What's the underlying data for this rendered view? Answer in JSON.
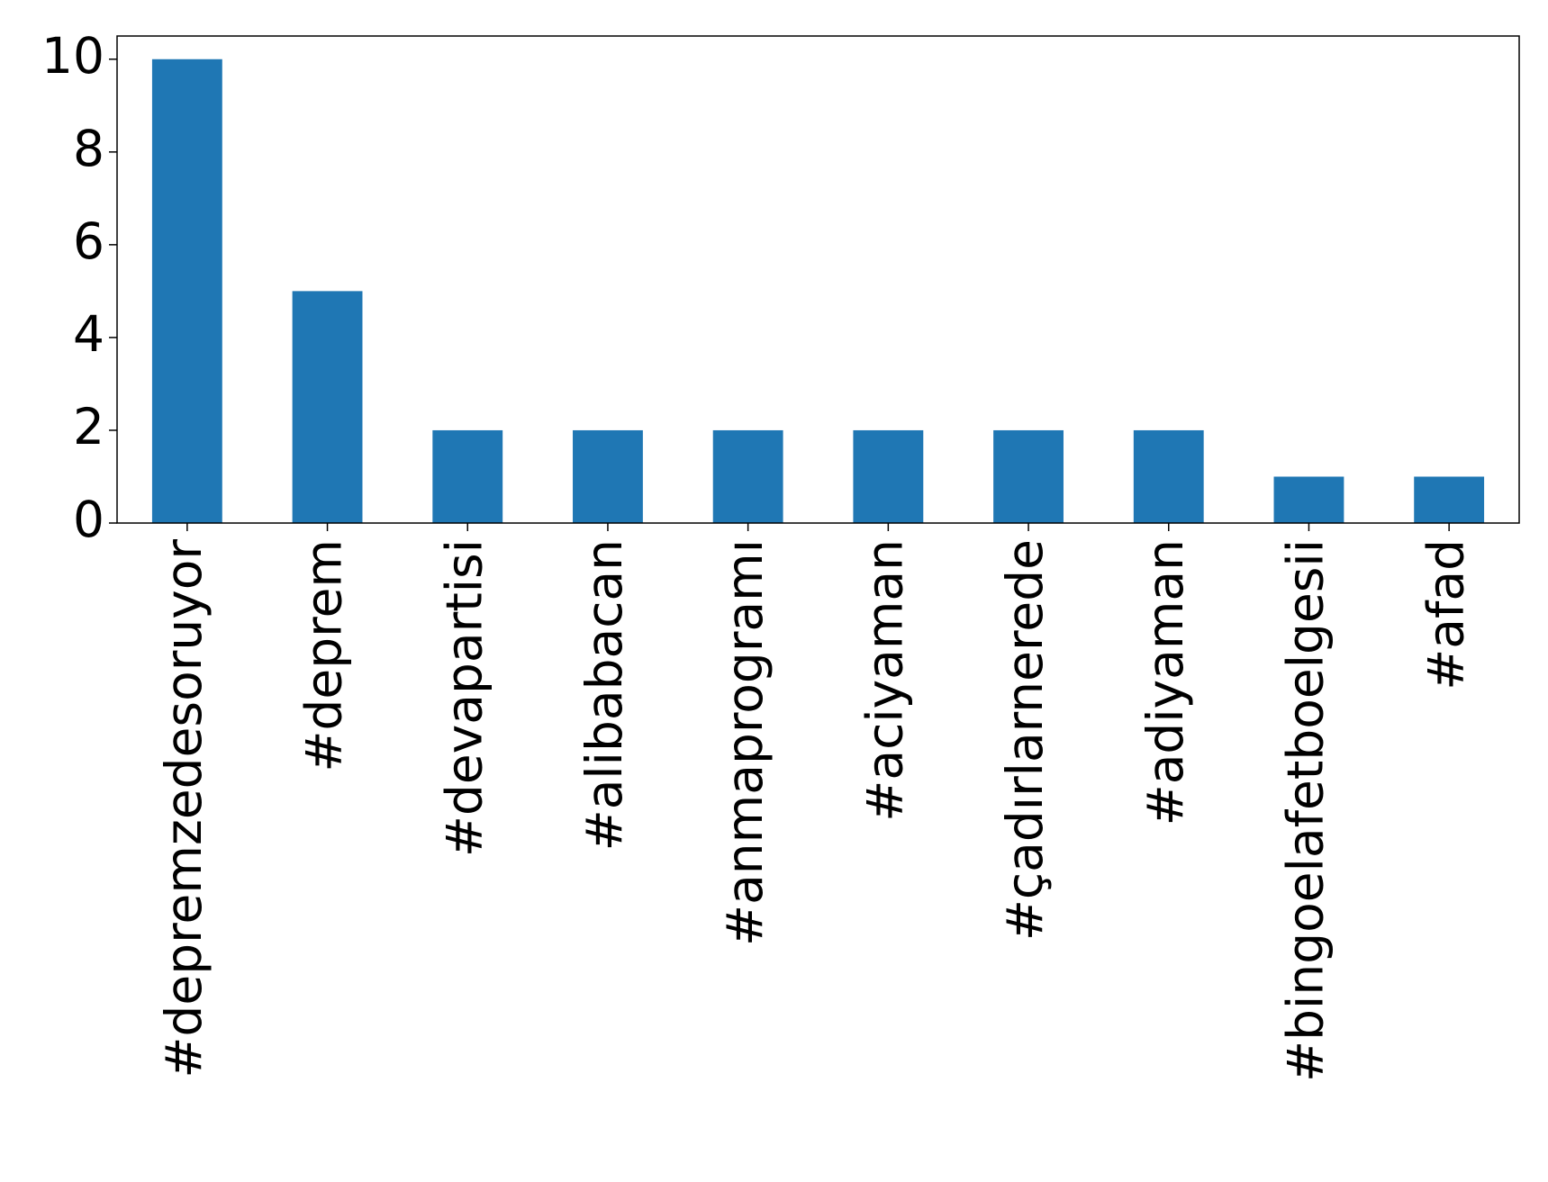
{
  "chart_data": {
    "type": "bar",
    "categories": [
      "#depremzedesoruyor",
      "#deprem",
      "#devapartisi",
      "#alibabacan",
      "#anmaprogramı",
      "#aciyaman",
      "#çadırlarnerede",
      "#adiyaman",
      "#bingoelafetboelgesii",
      "#afad"
    ],
    "values": [
      10,
      5,
      2,
      2,
      2,
      2,
      2,
      2,
      1,
      1
    ],
    "color": "#1f77b4",
    "ylim": [
      0,
      10.5
    ],
    "yticks": [
      0,
      2,
      4,
      6,
      8,
      10
    ],
    "grid": false
  }
}
